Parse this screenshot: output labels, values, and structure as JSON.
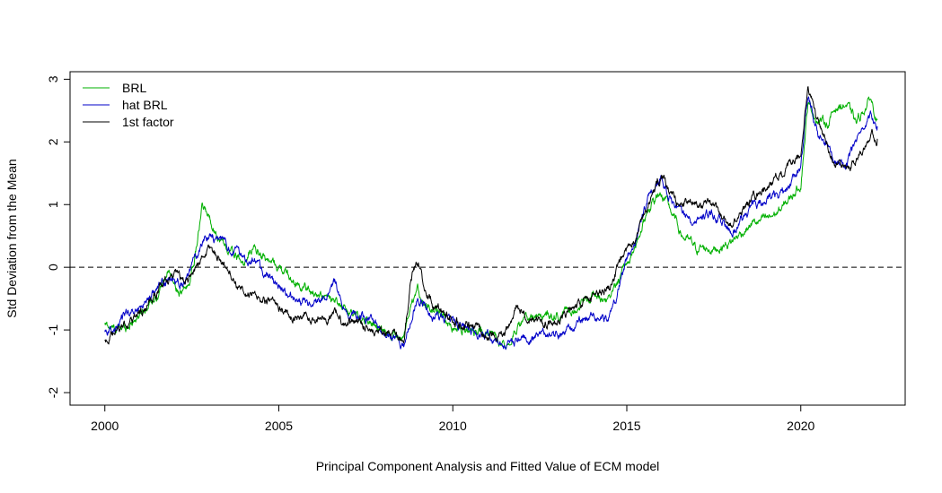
{
  "chart_data": {
    "type": "line",
    "title": "",
    "xlabel": "Principal Component Analysis and Fitted Value of ECM model",
    "ylabel": "Std Deviation from the Mean",
    "xlim": [
      1999.0,
      2023.0
    ],
    "ylim": [
      -2.2,
      3.12
    ],
    "x_ticks": [
      2000,
      2005,
      2010,
      2015,
      2020
    ],
    "y_ticks": [
      -2,
      -1,
      0,
      1,
      2,
      3
    ],
    "x_tick_labels": [
      "2000",
      "2005",
      "2010",
      "2015",
      "2020"
    ],
    "y_tick_labels": [
      "-2",
      "-1",
      "0",
      "1",
      "2",
      "3"
    ],
    "reference_line": {
      "y": 0,
      "style": "dashed"
    },
    "legend": {
      "position": "top-left",
      "frame": false
    },
    "series": [
      {
        "name": "BRL",
        "color": "#00b000",
        "points": [
          [
            2000.0,
            -0.92
          ],
          [
            2000.3,
            -1.0
          ],
          [
            2000.6,
            -0.95
          ],
          [
            2001.0,
            -0.75
          ],
          [
            2001.3,
            -0.55
          ],
          [
            2001.6,
            -0.35
          ],
          [
            2001.8,
            -0.05
          ],
          [
            2002.0,
            -0.3
          ],
          [
            2002.2,
            -0.45
          ],
          [
            2002.4,
            -0.3
          ],
          [
            2002.6,
            0.2
          ],
          [
            2002.8,
            0.95
          ],
          [
            2003.0,
            0.8
          ],
          [
            2003.3,
            0.45
          ],
          [
            2003.6,
            0.25
          ],
          [
            2004.0,
            0.05
          ],
          [
            2004.3,
            0.3
          ],
          [
            2004.6,
            0.15
          ],
          [
            2005.0,
            0.0
          ],
          [
            2005.3,
            -0.15
          ],
          [
            2005.6,
            -0.3
          ],
          [
            2006.0,
            -0.4
          ],
          [
            2006.5,
            -0.55
          ],
          [
            2007.0,
            -0.7
          ],
          [
            2007.5,
            -0.85
          ],
          [
            2008.0,
            -1.0
          ],
          [
            2008.3,
            -1.05
          ],
          [
            2008.6,
            -1.1
          ],
          [
            2008.8,
            -0.7
          ],
          [
            2009.0,
            -0.4
          ],
          [
            2009.3,
            -0.65
          ],
          [
            2009.7,
            -0.8
          ],
          [
            2010.0,
            -0.95
          ],
          [
            2010.5,
            -1.0
          ],
          [
            2011.0,
            -1.05
          ],
          [
            2011.5,
            -1.2
          ],
          [
            2012.0,
            -0.85
          ],
          [
            2012.5,
            -0.8
          ],
          [
            2013.0,
            -0.75
          ],
          [
            2013.5,
            -0.65
          ],
          [
            2014.0,
            -0.45
          ],
          [
            2014.5,
            -0.55
          ],
          [
            2015.0,
            0.05
          ],
          [
            2015.3,
            0.4
          ],
          [
            2015.6,
            0.95
          ],
          [
            2016.0,
            1.2
          ],
          [
            2016.3,
            0.85
          ],
          [
            2016.6,
            0.5
          ],
          [
            2017.0,
            0.3
          ],
          [
            2017.5,
            0.3
          ],
          [
            2018.0,
            0.4
          ],
          [
            2018.3,
            0.55
          ],
          [
            2018.6,
            0.7
          ],
          [
            2019.0,
            0.75
          ],
          [
            2019.5,
            0.95
          ],
          [
            2020.0,
            1.35
          ],
          [
            2020.2,
            2.6
          ],
          [
            2020.5,
            2.35
          ],
          [
            2020.8,
            2.3
          ],
          [
            2021.0,
            2.55
          ],
          [
            2021.3,
            2.6
          ],
          [
            2021.6,
            2.3
          ],
          [
            2022.0,
            2.7
          ],
          [
            2022.2,
            2.35
          ]
        ]
      },
      {
        "name": "hat BRL",
        "color": "#0000c8",
        "points": [
          [
            2000.0,
            -1.0
          ],
          [
            2000.3,
            -1.0
          ],
          [
            2000.6,
            -0.75
          ],
          [
            2001.0,
            -0.65
          ],
          [
            2001.3,
            -0.45
          ],
          [
            2001.6,
            -0.3
          ],
          [
            2001.8,
            -0.2
          ],
          [
            2002.0,
            -0.2
          ],
          [
            2002.3,
            -0.25
          ],
          [
            2002.5,
            0.0
          ],
          [
            2002.8,
            0.4
          ],
          [
            2003.0,
            0.55
          ],
          [
            2003.3,
            0.45
          ],
          [
            2003.6,
            0.3
          ],
          [
            2004.0,
            0.15
          ],
          [
            2004.3,
            0.1
          ],
          [
            2004.6,
            -0.1
          ],
          [
            2005.0,
            -0.3
          ],
          [
            2005.3,
            -0.45
          ],
          [
            2005.6,
            -0.55
          ],
          [
            2006.0,
            -0.6
          ],
          [
            2006.4,
            -0.4
          ],
          [
            2006.6,
            -0.25
          ],
          [
            2006.8,
            -0.6
          ],
          [
            2007.0,
            -0.75
          ],
          [
            2007.5,
            -0.8
          ],
          [
            2008.0,
            -1.0
          ],
          [
            2008.3,
            -1.1
          ],
          [
            2008.6,
            -1.25
          ],
          [
            2008.8,
            -0.8
          ],
          [
            2009.0,
            -0.45
          ],
          [
            2009.3,
            -0.7
          ],
          [
            2009.7,
            -0.85
          ],
          [
            2010.0,
            -0.9
          ],
          [
            2010.5,
            -1.0
          ],
          [
            2011.0,
            -1.1
          ],
          [
            2011.5,
            -1.2
          ],
          [
            2012.0,
            -1.1
          ],
          [
            2012.5,
            -1.1
          ],
          [
            2013.0,
            -1.05
          ],
          [
            2013.5,
            -0.95
          ],
          [
            2014.0,
            -0.8
          ],
          [
            2014.5,
            -0.8
          ],
          [
            2015.0,
            0.1
          ],
          [
            2015.3,
            0.5
          ],
          [
            2015.6,
            1.1
          ],
          [
            2016.0,
            1.4
          ],
          [
            2016.3,
            1.1
          ],
          [
            2016.6,
            0.85
          ],
          [
            2017.0,
            0.8
          ],
          [
            2017.5,
            0.85
          ],
          [
            2018.0,
            0.6
          ],
          [
            2018.3,
            0.75
          ],
          [
            2018.6,
            1.0
          ],
          [
            2019.0,
            1.05
          ],
          [
            2019.5,
            1.2
          ],
          [
            2020.0,
            1.6
          ],
          [
            2020.2,
            2.75
          ],
          [
            2020.5,
            2.1
          ],
          [
            2020.8,
            2.0
          ],
          [
            2021.0,
            1.75
          ],
          [
            2021.3,
            1.65
          ],
          [
            2021.6,
            1.95
          ],
          [
            2022.0,
            2.4
          ],
          [
            2022.2,
            2.25
          ]
        ]
      },
      {
        "name": "1st factor",
        "color": "#000000",
        "points": [
          [
            2000.0,
            -1.15
          ],
          [
            2000.3,
            -1.1
          ],
          [
            2000.6,
            -0.9
          ],
          [
            2001.0,
            -0.75
          ],
          [
            2001.3,
            -0.6
          ],
          [
            2001.6,
            -0.3
          ],
          [
            2001.8,
            -0.2
          ],
          [
            2002.0,
            -0.15
          ],
          [
            2002.3,
            -0.25
          ],
          [
            2002.5,
            -0.1
          ],
          [
            2002.8,
            0.15
          ],
          [
            2003.0,
            0.3
          ],
          [
            2003.3,
            0.15
          ],
          [
            2003.6,
            -0.1
          ],
          [
            2004.0,
            -0.45
          ],
          [
            2004.3,
            -0.4
          ],
          [
            2004.6,
            -0.55
          ],
          [
            2005.0,
            -0.6
          ],
          [
            2005.3,
            -0.75
          ],
          [
            2005.6,
            -0.8
          ],
          [
            2006.0,
            -0.85
          ],
          [
            2006.4,
            -0.8
          ],
          [
            2006.6,
            -0.65
          ],
          [
            2006.8,
            -0.85
          ],
          [
            2007.0,
            -0.85
          ],
          [
            2007.5,
            -0.95
          ],
          [
            2008.0,
            -1.05
          ],
          [
            2008.3,
            -1.1
          ],
          [
            2008.6,
            -1.2
          ],
          [
            2008.8,
            -0.1
          ],
          [
            2009.0,
            0.1
          ],
          [
            2009.2,
            -0.35
          ],
          [
            2009.5,
            -0.6
          ],
          [
            2009.8,
            -0.75
          ],
          [
            2010.0,
            -0.85
          ],
          [
            2010.5,
            -0.95
          ],
          [
            2011.0,
            -1.05
          ],
          [
            2011.5,
            -1.1
          ],
          [
            2011.8,
            -0.7
          ],
          [
            2012.0,
            -0.7
          ],
          [
            2012.5,
            -0.85
          ],
          [
            2013.0,
            -0.85
          ],
          [
            2013.5,
            -0.65
          ],
          [
            2014.0,
            -0.5
          ],
          [
            2014.5,
            -0.3
          ],
          [
            2015.0,
            0.25
          ],
          [
            2015.3,
            0.6
          ],
          [
            2015.6,
            1.0
          ],
          [
            2016.0,
            1.45
          ],
          [
            2016.3,
            1.1
          ],
          [
            2016.6,
            1.0
          ],
          [
            2017.0,
            1.05
          ],
          [
            2017.5,
            0.95
          ],
          [
            2018.0,
            0.65
          ],
          [
            2018.3,
            0.9
          ],
          [
            2018.6,
            1.1
          ],
          [
            2019.0,
            1.3
          ],
          [
            2019.5,
            1.5
          ],
          [
            2020.0,
            1.75
          ],
          [
            2020.2,
            2.85
          ],
          [
            2020.5,
            2.3
          ],
          [
            2020.8,
            1.9
          ],
          [
            2021.0,
            1.7
          ],
          [
            2021.3,
            1.55
          ],
          [
            2021.6,
            1.75
          ],
          [
            2022.0,
            2.15
          ],
          [
            2022.2,
            2.05
          ]
        ]
      }
    ]
  }
}
